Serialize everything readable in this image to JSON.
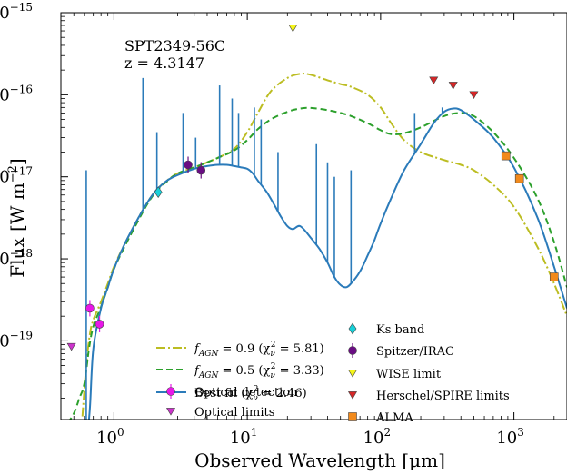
{
  "chart_data": {
    "type": "scatter",
    "title": "",
    "annotation": {
      "source": "SPT2349-56C",
      "redshift": "z = 4.3147"
    },
    "xlabel": "Observed Wavelength [μm]",
    "ylabel": "Flux [W m",
    "ylabel_sup": "−2",
    "ylabel_close": "]",
    "x_scale": "log",
    "y_scale": "log",
    "xlim": [
      0.4,
      2500
    ],
    "ylim": [
      1.1e-20,
      1e-15
    ],
    "x_ticks": [
      {
        "value": 1,
        "label": "10",
        "sup": "0"
      },
      {
        "value": 10,
        "label": "10",
        "sup": "1"
      },
      {
        "value": 100,
        "label": "10",
        "sup": "2"
      },
      {
        "value": 1000,
        "label": "10",
        "sup": "3"
      }
    ],
    "y_ticks": [
      {
        "value": 1e-19,
        "label": "10",
        "sup": "−19"
      },
      {
        "value": 1e-18,
        "label": "10",
        "sup": "−18"
      },
      {
        "value": 1e-17,
        "label": "10",
        "sup": "−17"
      },
      {
        "value": 1e-16,
        "label": "10",
        "sup": "−16"
      },
      {
        "value": 1e-15,
        "label": "10",
        "sup": "−15"
      }
    ],
    "grid": false,
    "legend_position": "bottom-center",
    "colors": {
      "best_fit": "#2b7bba",
      "agn09": "#bcbd22",
      "agn05": "#2ca02c"
    },
    "models": [
      {
        "id": "agn09",
        "name": "f",
        "name_sub": "AGN",
        "name_rest": " = 0.9 (χ",
        "chi_sub": "ν",
        "chi_sup": "2",
        "name_end": " = 5.81)",
        "color": "#bcbd22",
        "dash": "10,3,2,3",
        "x": [
          0.58,
          0.62,
          0.66,
          0.7,
          0.8,
          0.9,
          1.0,
          1.2,
          1.5,
          1.8,
          2.1,
          2.5,
          3,
          4,
          5,
          6,
          8,
          10,
          12,
          15,
          20,
          25,
          30,
          40,
          50,
          60,
          80,
          100,
          120,
          150,
          200,
          300,
          400,
          500,
          700,
          1000,
          1500,
          2000,
          2500
        ],
        "y": [
          1.2e-20,
          5e-20,
          1.2e-19,
          1.8e-19,
          3e-19,
          5e-19,
          8e-19,
          1.5e-18,
          3e-18,
          5e-18,
          7e-18,
          9e-18,
          1.1e-17,
          1.3e-17,
          1.5e-17,
          1.7e-17,
          2.2e-17,
          3.5e-17,
          6e-17,
          1.1e-16,
          1.6e-16,
          1.8e-16,
          1.75e-16,
          1.5e-16,
          1.35e-16,
          1.25e-16,
          1e-16,
          7e-17,
          4.5e-17,
          2.8e-17,
          2e-17,
          1.6e-17,
          1.4e-17,
          1.2e-17,
          8e-18,
          4.3e-18,
          1.4e-18,
          5e-19,
          2e-19
        ]
      },
      {
        "id": "agn05",
        "name": "f",
        "name_sub": "AGN",
        "name_rest": " = 0.5 (χ",
        "chi_sub": "ν",
        "chi_sup": "2",
        "name_end": " = 3.33)",
        "color": "#2ca02c",
        "dash": "7,4",
        "x": [
          0.45,
          0.5,
          0.55,
          0.6,
          0.65,
          0.7,
          0.8,
          0.9,
          1.0,
          1.2,
          1.5,
          1.8,
          2.1,
          2.5,
          3,
          4,
          5,
          6,
          8,
          10,
          12,
          15,
          20,
          25,
          30,
          40,
          50,
          60,
          80,
          100,
          120,
          150,
          200,
          300,
          400,
          500,
          700,
          1000,
          1500,
          2000,
          2500
        ],
        "y": [
          1e-20,
          1.3e-20,
          2e-20,
          3e-20,
          8e-20,
          1.5e-19,
          2.6e-19,
          4.5e-19,
          7.5e-19,
          1.4e-18,
          2.8e-18,
          4.8e-18,
          6.8e-18,
          8.8e-18,
          1.1e-17,
          1.3e-17,
          1.5e-17,
          1.7e-17,
          2.1e-17,
          2.8e-17,
          3.8e-17,
          5e-17,
          6.2e-17,
          6.8e-17,
          6.9e-17,
          6.5e-17,
          6e-17,
          5.5e-17,
          4.5e-17,
          3.7e-17,
          3.3e-17,
          3.4e-17,
          4e-17,
          5.5e-17,
          6e-17,
          5.5e-17,
          3.5e-17,
          1.7e-17,
          5.5e-18,
          1.6e-18,
          4.5e-19
        ]
      },
      {
        "id": "best",
        "name": "Best fit (χ",
        "chi_sub": "ν",
        "chi_sup": "2",
        "name_end": " = 2.46)",
        "color": "#2b7bba",
        "dash": "",
        "x": [
          0.62,
          0.66,
          0.7,
          0.8,
          0.9,
          1.0,
          1.2,
          1.5,
          1.8,
          2.1,
          2.5,
          3,
          4,
          5,
          6,
          7,
          8,
          9,
          10,
          11,
          12,
          14,
          16,
          18,
          20,
          22,
          25,
          30,
          35,
          40,
          45,
          50,
          55,
          60,
          70,
          80,
          90,
          100,
          120,
          150,
          200,
          250,
          300,
          350,
          400,
          500,
          700,
          1000,
          1500,
          2000,
          2500
        ],
        "y": [
          5e-21,
          1.5e-20,
          8e-20,
          2.5e-19,
          4.5e-19,
          7.5e-19,
          1.5e-18,
          3e-18,
          5e-18,
          7e-18,
          9e-18,
          1.05e-17,
          1.25e-17,
          1.35e-17,
          1.4e-17,
          1.4e-17,
          1.35e-17,
          1.3e-17,
          1.25e-17,
          1.1e-17,
          9e-18,
          6.5e-18,
          4.5e-18,
          3.2e-18,
          2.5e-18,
          2.3e-18,
          2.5e-18,
          1.8e-18,
          1.3e-18,
          9e-19,
          6e-19,
          4.8e-19,
          4.5e-19,
          5e-19,
          7e-19,
          1.1e-18,
          1.7e-18,
          2.7e-18,
          5.5e-18,
          1.2e-17,
          2.5e-17,
          4.5e-17,
          6.2e-17,
          6.8e-17,
          6.5e-17,
          5e-17,
          3e-17,
          1.3e-17,
          3.2e-18,
          8e-19,
          2.5e-19
        ]
      }
    ],
    "emission_lines": [
      {
        "x": 0.62,
        "y": 1.2e-17
      },
      {
        "x": 1.65,
        "y": 1.6e-16
      },
      {
        "x": 2.1,
        "y": 3.5e-17
      },
      {
        "x": 3.3,
        "y": 6e-17
      },
      {
        "x": 4.1,
        "y": 3e-17
      },
      {
        "x": 6.2,
        "y": 1.3e-16
      },
      {
        "x": 7.7,
        "y": 9e-17
      },
      {
        "x": 8.6,
        "y": 6e-17
      },
      {
        "x": 11.3,
        "y": 7e-17
      },
      {
        "x": 12.7,
        "y": 5e-17
      },
      {
        "x": 17,
        "y": 2e-17
      },
      {
        "x": 33,
        "y": 2.5e-17
      },
      {
        "x": 40,
        "y": 1.5e-17
      },
      {
        "x": 45,
        "y": 1e-17
      },
      {
        "x": 60,
        "y": 1.2e-17
      },
      {
        "x": 180,
        "y": 6e-17
      },
      {
        "x": 290,
        "y": 7e-17
      }
    ],
    "series": [
      {
        "id": "optical_detection",
        "name": "Optical detection",
        "marker": "circle",
        "color": "#e817e8",
        "points": [
          {
            "x": 0.66,
            "y": 2.5e-19
          },
          {
            "x": 0.78,
            "y": 1.6e-19
          }
        ]
      },
      {
        "id": "optical_limits",
        "name": "Optical limits",
        "marker": "triangle-down",
        "color": "#cc33cc",
        "points": [
          {
            "x": 0.48,
            "y": 8.5e-20
          }
        ]
      },
      {
        "id": "ks_band",
        "name": "Ks band",
        "marker": "diamond",
        "color": "#17d1d9",
        "points": [
          {
            "x": 2.15,
            "y": 6.5e-18
          }
        ]
      },
      {
        "id": "spitzer_irac",
        "name": "Spitzer/IRAC",
        "marker": "circle",
        "color": "#6a0d83",
        "points": [
          {
            "x": 3.6,
            "y": 1.4e-17
          },
          {
            "x": 4.5,
            "y": 1.2e-17
          }
        ]
      },
      {
        "id": "wise_limit",
        "name": "WISE limit",
        "marker": "triangle-down",
        "color": "#f5f51a",
        "points": [
          {
            "x": 22,
            "y": 6.5e-16
          }
        ]
      },
      {
        "id": "herschel_spire",
        "name": "Herschel/SPIRE limits",
        "marker": "triangle-down",
        "color": "#d62728",
        "points": [
          {
            "x": 250,
            "y": 1.5e-16
          },
          {
            "x": 350,
            "y": 1.3e-16
          },
          {
            "x": 500,
            "y": 1e-16
          }
        ]
      },
      {
        "id": "alma",
        "name": "ALMA",
        "marker": "square",
        "color": "#f28a1c",
        "points": [
          {
            "x": 870,
            "y": 1.8e-17
          },
          {
            "x": 1100,
            "y": 9.5e-18
          },
          {
            "x": 2000,
            "y": 6e-19
          }
        ]
      }
    ]
  }
}
